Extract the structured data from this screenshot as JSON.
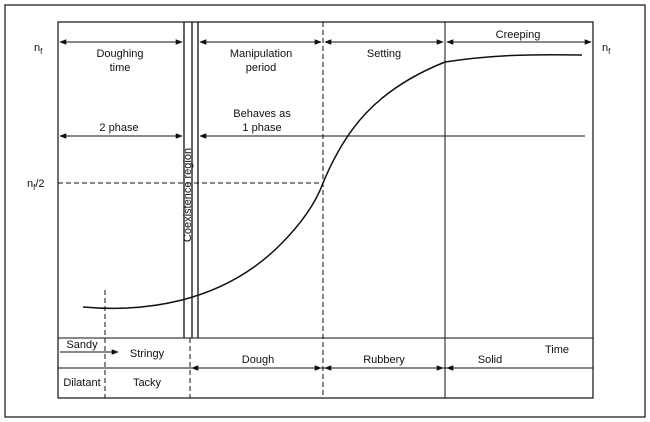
{
  "frame_labels": {
    "top_left": "n",
    "top_left_sub": "f",
    "top_right": "n",
    "top_right_sub": "f",
    "half_main": "n",
    "half_sub": "f",
    "half_suffix": "/2"
  },
  "phases": {
    "doughing_line1": "Doughing",
    "doughing_line2": "time",
    "manipulation_line1": "Manipulation",
    "manipulation_line2": "period",
    "setting": "Setting",
    "creeping": "Creeping"
  },
  "phase_behavior": {
    "two_phase": "2 phase",
    "one_phase_line1": "Behaves as",
    "one_phase_line2": "1 phase"
  },
  "coexistence_label": "Coexistence region",
  "states": {
    "sandy": "Sandy",
    "stringy": "Stringy",
    "dilatant": "Dilatant",
    "tacky": "Tacky",
    "dough": "Dough",
    "rubbery": "Rubbery",
    "solid": "Solid",
    "time": "Time"
  }
}
